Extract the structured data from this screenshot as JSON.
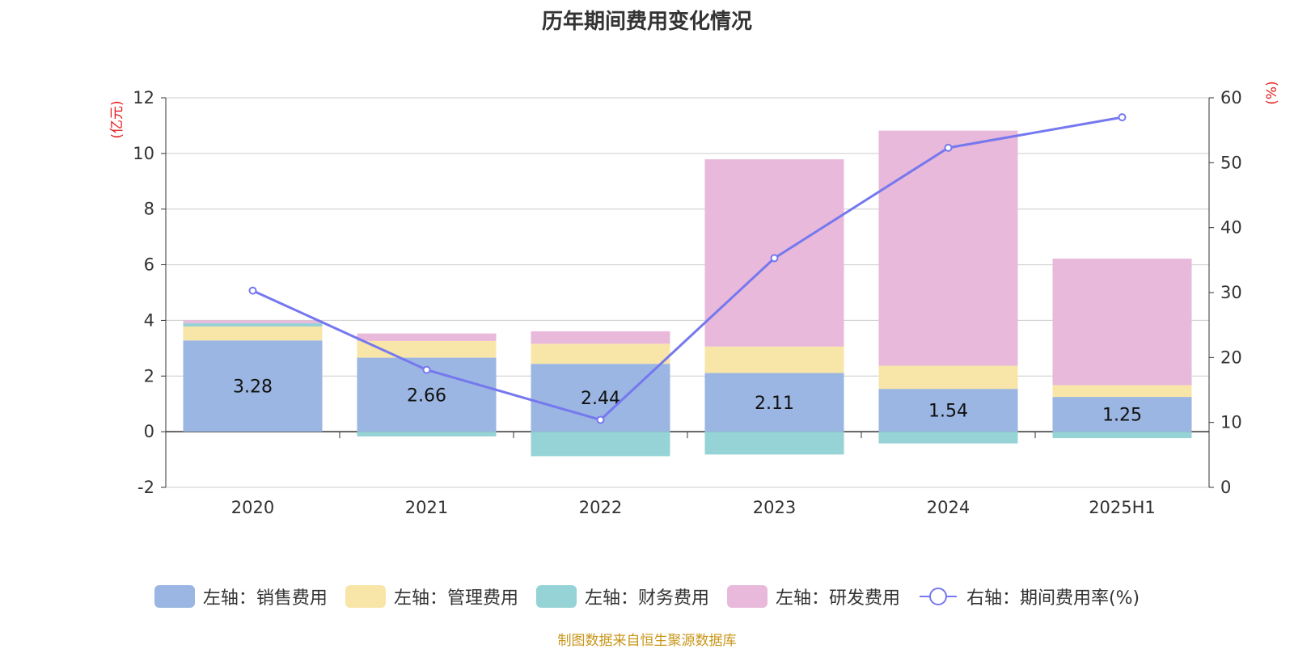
{
  "chart_data": {
    "type": "bar",
    "title": "历年期间费用变化情况",
    "categories": [
      "2020",
      "2021",
      "2022",
      "2023",
      "2024",
      "2025H1"
    ],
    "stacked": true,
    "left_axis": {
      "unit": "(亿元)",
      "ylim": [
        -2,
        12
      ],
      "ticks": [
        -2,
        0,
        2,
        4,
        6,
        8,
        10,
        12
      ]
    },
    "right_axis": {
      "unit": "(%)",
      "ylim": [
        0,
        60
      ],
      "ticks": [
        0,
        10,
        20,
        30,
        40,
        50,
        60
      ]
    },
    "series": [
      {
        "name": "左轴：销售费用",
        "type": "bar",
        "axis": "left",
        "color": "#9bb6e2",
        "values": [
          3.28,
          2.66,
          2.44,
          2.11,
          1.54,
          1.25
        ],
        "show_labels": true
      },
      {
        "name": "左轴：管理费用",
        "type": "bar",
        "axis": "left",
        "color": "#f8e6a8",
        "values": [
          0.5,
          0.6,
          0.72,
          0.95,
          0.83,
          0.42
        ]
      },
      {
        "name": "左轴：财务费用",
        "type": "bar",
        "axis": "left",
        "color": "#96d3d6",
        "values": [
          0.12,
          -0.17,
          -0.88,
          -0.82,
          -0.42,
          -0.23
        ]
      },
      {
        "name": "左轴：研发费用",
        "type": "bar",
        "axis": "left",
        "color": "#e8b9da",
        "values": [
          0.1,
          0.27,
          0.45,
          6.73,
          8.45,
          4.55
        ]
      },
      {
        "name": "右轴：期间费用率(%)",
        "type": "line",
        "axis": "right",
        "color": "#7578ee",
        "values": [
          30.3,
          18.1,
          10.4,
          35.3,
          52.3,
          57.0
        ]
      }
    ],
    "grid": true,
    "legend_position": "bottom"
  },
  "source": "制图数据来自恒生聚源数据库"
}
